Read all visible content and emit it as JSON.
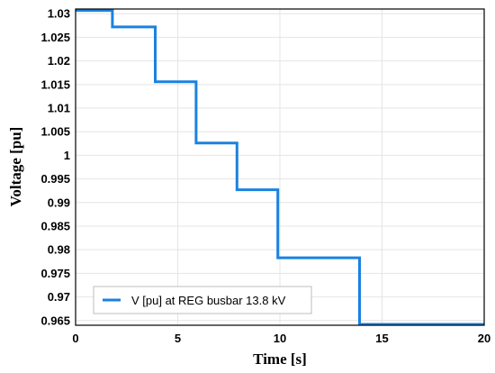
{
  "chart_data": {
    "type": "line",
    "title": "",
    "xlabel": "Time [s]",
    "ylabel": "Voltage [pu]",
    "xlim": [
      0,
      20
    ],
    "ylim": [
      0.964,
      1.031
    ],
    "xticks": [
      0,
      5,
      10,
      15,
      20
    ],
    "yticks": [
      0.965,
      0.97,
      0.975,
      0.98,
      0.985,
      0.99,
      0.995,
      1,
      1.005,
      1.01,
      1.015,
      1.02,
      1.025,
      1.03
    ],
    "yticklabels": [
      "0.965",
      "0.97",
      "0.975",
      "0.98",
      "0.985",
      "0.99",
      "0.995",
      "1",
      "1.005",
      "1.01",
      "1.015",
      "1.02",
      "1.025",
      "1.03"
    ],
    "xticklabels": [
      "0",
      "5",
      "10",
      "15",
      "20"
    ],
    "grid": true,
    "legend_position": "bottom-left",
    "series": [
      {
        "name": "V [pu] at REG busbar 13.8 kV",
        "color": "#1a82e0",
        "step": true,
        "x": [
          0,
          1.8,
          1.8,
          3.9,
          3.9,
          5.9,
          5.9,
          7.9,
          7.9,
          9.9,
          9.9,
          13.9,
          13.9,
          20
        ],
        "y": [
          1.0307,
          1.0307,
          1.0272,
          1.0272,
          1.0156,
          1.0156,
          1.0026,
          1.0026,
          0.9927,
          0.9927,
          0.9783,
          0.9783,
          0.9642,
          0.9642
        ]
      }
    ]
  }
}
